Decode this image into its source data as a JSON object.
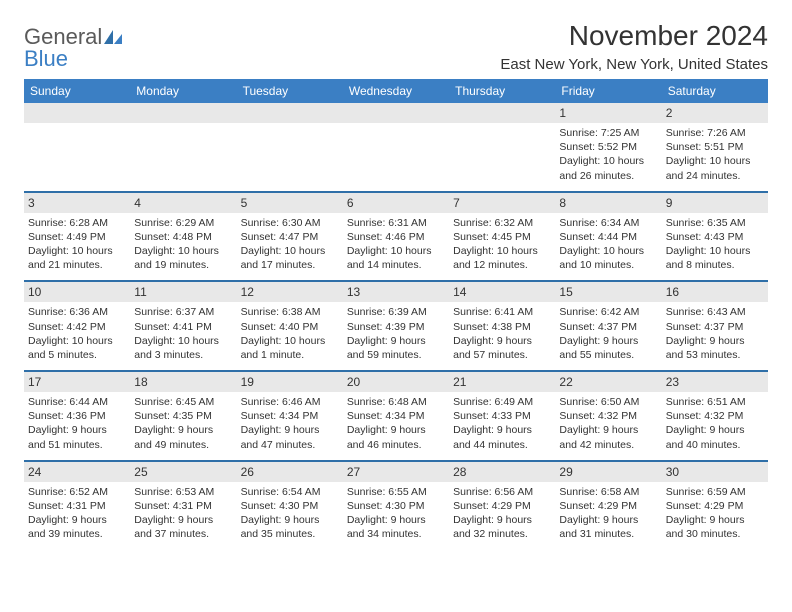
{
  "logo": {
    "general": "General",
    "blue": "Blue"
  },
  "title": "November 2024",
  "location": "East New York, New York, United States",
  "dow": [
    "Sunday",
    "Monday",
    "Tuesday",
    "Wednesday",
    "Thursday",
    "Friday",
    "Saturday"
  ],
  "colors": {
    "header_bg": "#3b7fc4",
    "header_text": "#ffffff",
    "daynum_bg": "#e8e8e8",
    "sep": "#2f6fa8",
    "text": "#333333",
    "logo_gray": "#5a5a5a",
    "logo_blue": "#3b7fc4"
  },
  "weeks": [
    [
      null,
      null,
      null,
      null,
      null,
      {
        "n": "1",
        "sunrise": "Sunrise: 7:25 AM",
        "sunset": "Sunset: 5:52 PM",
        "dl1": "Daylight: 10 hours",
        "dl2": "and 26 minutes."
      },
      {
        "n": "2",
        "sunrise": "Sunrise: 7:26 AM",
        "sunset": "Sunset: 5:51 PM",
        "dl1": "Daylight: 10 hours",
        "dl2": "and 24 minutes."
      }
    ],
    [
      {
        "n": "3",
        "sunrise": "Sunrise: 6:28 AM",
        "sunset": "Sunset: 4:49 PM",
        "dl1": "Daylight: 10 hours",
        "dl2": "and 21 minutes."
      },
      {
        "n": "4",
        "sunrise": "Sunrise: 6:29 AM",
        "sunset": "Sunset: 4:48 PM",
        "dl1": "Daylight: 10 hours",
        "dl2": "and 19 minutes."
      },
      {
        "n": "5",
        "sunrise": "Sunrise: 6:30 AM",
        "sunset": "Sunset: 4:47 PM",
        "dl1": "Daylight: 10 hours",
        "dl2": "and 17 minutes."
      },
      {
        "n": "6",
        "sunrise": "Sunrise: 6:31 AM",
        "sunset": "Sunset: 4:46 PM",
        "dl1": "Daylight: 10 hours",
        "dl2": "and 14 minutes."
      },
      {
        "n": "7",
        "sunrise": "Sunrise: 6:32 AM",
        "sunset": "Sunset: 4:45 PM",
        "dl1": "Daylight: 10 hours",
        "dl2": "and 12 minutes."
      },
      {
        "n": "8",
        "sunrise": "Sunrise: 6:34 AM",
        "sunset": "Sunset: 4:44 PM",
        "dl1": "Daylight: 10 hours",
        "dl2": "and 10 minutes."
      },
      {
        "n": "9",
        "sunrise": "Sunrise: 6:35 AM",
        "sunset": "Sunset: 4:43 PM",
        "dl1": "Daylight: 10 hours",
        "dl2": "and 8 minutes."
      }
    ],
    [
      {
        "n": "10",
        "sunrise": "Sunrise: 6:36 AM",
        "sunset": "Sunset: 4:42 PM",
        "dl1": "Daylight: 10 hours",
        "dl2": "and 5 minutes."
      },
      {
        "n": "11",
        "sunrise": "Sunrise: 6:37 AM",
        "sunset": "Sunset: 4:41 PM",
        "dl1": "Daylight: 10 hours",
        "dl2": "and 3 minutes."
      },
      {
        "n": "12",
        "sunrise": "Sunrise: 6:38 AM",
        "sunset": "Sunset: 4:40 PM",
        "dl1": "Daylight: 10 hours",
        "dl2": "and 1 minute."
      },
      {
        "n": "13",
        "sunrise": "Sunrise: 6:39 AM",
        "sunset": "Sunset: 4:39 PM",
        "dl1": "Daylight: 9 hours",
        "dl2": "and 59 minutes."
      },
      {
        "n": "14",
        "sunrise": "Sunrise: 6:41 AM",
        "sunset": "Sunset: 4:38 PM",
        "dl1": "Daylight: 9 hours",
        "dl2": "and 57 minutes."
      },
      {
        "n": "15",
        "sunrise": "Sunrise: 6:42 AM",
        "sunset": "Sunset: 4:37 PM",
        "dl1": "Daylight: 9 hours",
        "dl2": "and 55 minutes."
      },
      {
        "n": "16",
        "sunrise": "Sunrise: 6:43 AM",
        "sunset": "Sunset: 4:37 PM",
        "dl1": "Daylight: 9 hours",
        "dl2": "and 53 minutes."
      }
    ],
    [
      {
        "n": "17",
        "sunrise": "Sunrise: 6:44 AM",
        "sunset": "Sunset: 4:36 PM",
        "dl1": "Daylight: 9 hours",
        "dl2": "and 51 minutes."
      },
      {
        "n": "18",
        "sunrise": "Sunrise: 6:45 AM",
        "sunset": "Sunset: 4:35 PM",
        "dl1": "Daylight: 9 hours",
        "dl2": "and 49 minutes."
      },
      {
        "n": "19",
        "sunrise": "Sunrise: 6:46 AM",
        "sunset": "Sunset: 4:34 PM",
        "dl1": "Daylight: 9 hours",
        "dl2": "and 47 minutes."
      },
      {
        "n": "20",
        "sunrise": "Sunrise: 6:48 AM",
        "sunset": "Sunset: 4:34 PM",
        "dl1": "Daylight: 9 hours",
        "dl2": "and 46 minutes."
      },
      {
        "n": "21",
        "sunrise": "Sunrise: 6:49 AM",
        "sunset": "Sunset: 4:33 PM",
        "dl1": "Daylight: 9 hours",
        "dl2": "and 44 minutes."
      },
      {
        "n": "22",
        "sunrise": "Sunrise: 6:50 AM",
        "sunset": "Sunset: 4:32 PM",
        "dl1": "Daylight: 9 hours",
        "dl2": "and 42 minutes."
      },
      {
        "n": "23",
        "sunrise": "Sunrise: 6:51 AM",
        "sunset": "Sunset: 4:32 PM",
        "dl1": "Daylight: 9 hours",
        "dl2": "and 40 minutes."
      }
    ],
    [
      {
        "n": "24",
        "sunrise": "Sunrise: 6:52 AM",
        "sunset": "Sunset: 4:31 PM",
        "dl1": "Daylight: 9 hours",
        "dl2": "and 39 minutes."
      },
      {
        "n": "25",
        "sunrise": "Sunrise: 6:53 AM",
        "sunset": "Sunset: 4:31 PM",
        "dl1": "Daylight: 9 hours",
        "dl2": "and 37 minutes."
      },
      {
        "n": "26",
        "sunrise": "Sunrise: 6:54 AM",
        "sunset": "Sunset: 4:30 PM",
        "dl1": "Daylight: 9 hours",
        "dl2": "and 35 minutes."
      },
      {
        "n": "27",
        "sunrise": "Sunrise: 6:55 AM",
        "sunset": "Sunset: 4:30 PM",
        "dl1": "Daylight: 9 hours",
        "dl2": "and 34 minutes."
      },
      {
        "n": "28",
        "sunrise": "Sunrise: 6:56 AM",
        "sunset": "Sunset: 4:29 PM",
        "dl1": "Daylight: 9 hours",
        "dl2": "and 32 minutes."
      },
      {
        "n": "29",
        "sunrise": "Sunrise: 6:58 AM",
        "sunset": "Sunset: 4:29 PM",
        "dl1": "Daylight: 9 hours",
        "dl2": "and 31 minutes."
      },
      {
        "n": "30",
        "sunrise": "Sunrise: 6:59 AM",
        "sunset": "Sunset: 4:29 PM",
        "dl1": "Daylight: 9 hours",
        "dl2": "and 30 minutes."
      }
    ]
  ]
}
